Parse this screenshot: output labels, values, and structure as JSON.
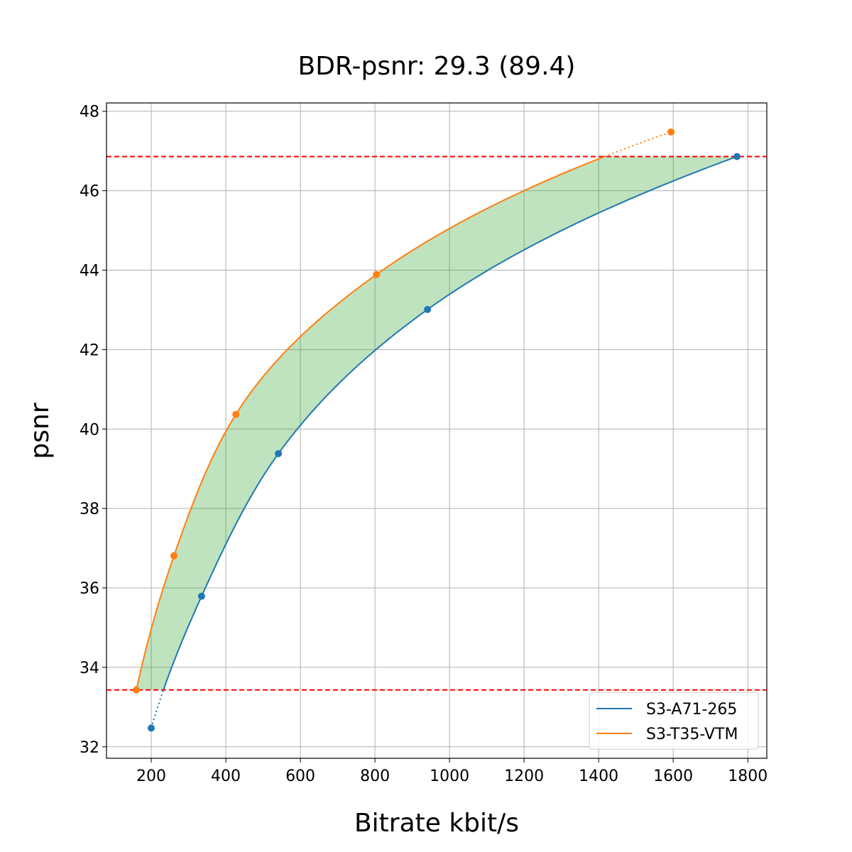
{
  "chart_data": {
    "type": "line",
    "title": "BDR-psnr: 29.3 (89.4)",
    "xlabel": "Bitrate kbit/s",
    "ylabel": "psnr",
    "xlim": [
      80,
      1851
    ],
    "ylim": [
      31.71,
      48.21
    ],
    "xticks": [
      200,
      400,
      600,
      800,
      1000,
      1200,
      1400,
      1600,
      1800
    ],
    "yticks": [
      32,
      34,
      36,
      38,
      40,
      42,
      44,
      46,
      48
    ],
    "grid": true,
    "legend_position": "bottom-right",
    "series": [
      {
        "name": "S3-A71-265",
        "color": "#1f77b4",
        "x": [
          200,
          335,
          541,
          941,
          1771
        ],
        "y": [
          32.47,
          35.79,
          39.38,
          43.01,
          46.86
        ]
      },
      {
        "name": "S3-T35-VTM",
        "color": "#ff7f0e",
        "x": [
          160,
          261,
          427,
          804,
          1594
        ],
        "y": [
          33.43,
          36.81,
          40.37,
          43.89,
          47.48
        ]
      }
    ],
    "hlines": [
      {
        "y": 46.86,
        "color": "#ff0000",
        "style": "dashed"
      },
      {
        "y": 33.43,
        "color": "#ff0000",
        "style": "dashed"
      }
    ],
    "fill_between_color": "#2ca02c"
  }
}
